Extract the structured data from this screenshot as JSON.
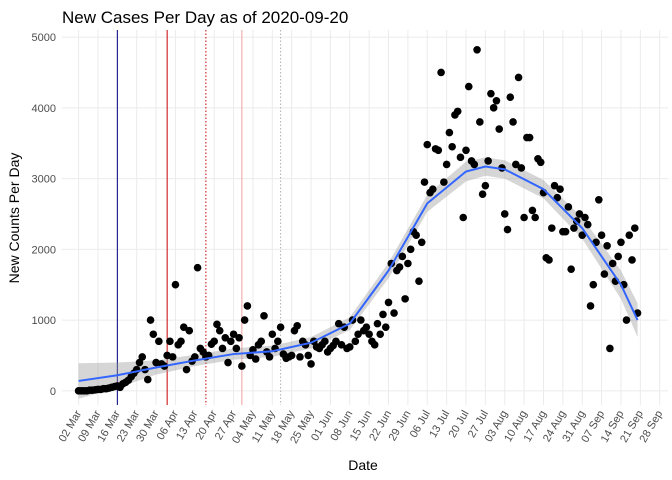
{
  "chart_data": {
    "type": "scatter",
    "title": "New Cases Per Day as of 2020-09-20",
    "x_label": "Date",
    "y_label": "New Counts Per Day",
    "color": "#000000",
    "x": [
      "02 Mar",
      "03 Mar",
      "04 Mar",
      "05 Mar",
      "06 Mar",
      "07 Mar",
      "08 Mar",
      "09 Mar",
      "10 Mar",
      "11 Mar",
      "12 Mar",
      "13 Mar",
      "14 Mar",
      "15 Mar",
      "16 Mar",
      "17 Mar",
      "18 Mar",
      "19 Mar",
      "20 Mar",
      "21 Mar",
      "22 Mar",
      "23 Mar",
      "24 Mar",
      "25 Mar",
      "26 Mar",
      "27 Mar",
      "28 Mar",
      "29 Mar",
      "30 Mar",
      "31 Mar",
      "01 Apr",
      "02 Apr",
      "03 Apr",
      "04 Apr",
      "05 Apr",
      "06 Apr",
      "07 Apr",
      "08 Apr",
      "09 Apr",
      "10 Apr",
      "11 Apr",
      "12 Apr",
      "13 Apr",
      "14 Apr",
      "15 Apr",
      "16 Apr",
      "17 Apr",
      "18 Apr",
      "19 Apr",
      "20 Apr",
      "21 Apr",
      "22 Apr",
      "23 Apr",
      "24 Apr",
      "25 Apr",
      "26 Apr",
      "27 Apr",
      "28 Apr",
      "29 Apr",
      "30 Apr",
      "01 May",
      "02 May",
      "03 May",
      "04 May",
      "05 May",
      "06 May",
      "07 May",
      "08 May",
      "09 May",
      "10 May",
      "11 May",
      "12 May",
      "13 May",
      "14 May",
      "15 May",
      "16 May",
      "17 May",
      "18 May",
      "19 May",
      "20 May",
      "21 May",
      "22 May",
      "23 May",
      "24 May",
      "25 May",
      "26 May",
      "27 May",
      "28 May",
      "29 May",
      "30 May",
      "31 May",
      "01 Jun",
      "02 Jun",
      "03 Jun",
      "04 Jun",
      "05 Jun",
      "06 Jun",
      "07 Jun",
      "08 Jun",
      "09 Jun",
      "10 Jun",
      "11 Jun",
      "12 Jun",
      "13 Jun",
      "14 Jun",
      "15 Jun",
      "16 Jun",
      "17 Jun",
      "18 Jun",
      "19 Jun",
      "20 Jun",
      "21 Jun",
      "22 Jun",
      "23 Jun",
      "24 Jun",
      "25 Jun",
      "26 Jun",
      "27 Jun",
      "28 Jun",
      "29 Jun",
      "30 Jun",
      "01 Jul",
      "02 Jul",
      "03 Jul",
      "04 Jul",
      "05 Jul",
      "06 Jul",
      "07 Jul",
      "08 Jul",
      "09 Jul",
      "10 Jul",
      "11 Jul",
      "12 Jul",
      "13 Jul",
      "14 Jul",
      "15 Jul",
      "16 Jul",
      "17 Jul",
      "18 Jul",
      "19 Jul",
      "20 Jul",
      "21 Jul",
      "22 Jul",
      "23 Jul",
      "24 Jul",
      "25 Jul",
      "26 Jul",
      "27 Jul",
      "28 Jul",
      "29 Jul",
      "30 Jul",
      "31 Jul",
      "01 Aug",
      "02 Aug",
      "03 Aug",
      "04 Aug",
      "05 Aug",
      "06 Aug",
      "07 Aug",
      "08 Aug",
      "09 Aug",
      "10 Aug",
      "11 Aug",
      "12 Aug",
      "13 Aug",
      "14 Aug",
      "15 Aug",
      "16 Aug",
      "17 Aug",
      "18 Aug",
      "19 Aug",
      "20 Aug",
      "21 Aug",
      "22 Aug",
      "23 Aug",
      "24 Aug",
      "25 Aug",
      "26 Aug",
      "27 Aug",
      "28 Aug",
      "29 Aug",
      "30 Aug",
      "31 Aug",
      "01 Sep",
      "02 Sep",
      "03 Sep",
      "04 Sep",
      "05 Sep",
      "06 Sep",
      "07 Sep",
      "08 Sep",
      "09 Sep",
      "10 Sep",
      "11 Sep",
      "12 Sep",
      "13 Sep",
      "14 Sep",
      "15 Sep",
      "16 Sep",
      "17 Sep",
      "18 Sep",
      "19 Sep",
      "20 Sep"
    ],
    "values": [
      0,
      0,
      0,
      0,
      10,
      10,
      15,
      20,
      20,
      30,
      30,
      40,
      50,
      60,
      70,
      50,
      100,
      120,
      150,
      200,
      250,
      300,
      400,
      480,
      300,
      160,
      1000,
      800,
      400,
      700,
      380,
      350,
      500,
      700,
      480,
      1500,
      650,
      700,
      900,
      300,
      850,
      420,
      480,
      1740,
      600,
      550,
      480,
      500,
      660,
      700,
      940,
      850,
      600,
      750,
      400,
      700,
      800,
      600,
      750,
      350,
      1000,
      1200,
      500,
      580,
      450,
      650,
      700,
      1060,
      550,
      480,
      800,
      600,
      700,
      900,
      520,
      460,
      480,
      500,
      850,
      920,
      480,
      700,
      650,
      500,
      380,
      700,
      620,
      600,
      650,
      700,
      550,
      600,
      640,
      700,
      950,
      650,
      900,
      600,
      620,
      1000,
      700,
      800,
      1000,
      850,
      900,
      800,
      700,
      650,
      950,
      800,
      1080,
      900,
      1250,
      1800,
      1100,
      1700,
      1750,
      1900,
      1300,
      1800,
      2000,
      2250,
      2200,
      1550,
      2100,
      2950,
      3480,
      2800,
      2850,
      3420,
      3400,
      4500,
      2950,
      3200,
      3650,
      3450,
      3900,
      3950,
      3300,
      2450,
      3400,
      4300,
      3250,
      3200,
      4820,
      3800,
      2780,
      2900,
      3250,
      4200,
      4000,
      4100,
      3700,
      3150,
      2500,
      2280,
      4150,
      3800,
      3200,
      4430,
      3150,
      2450,
      3580,
      3580,
      2550,
      2450,
      3280,
      3230,
      2800,
      1880,
      1850,
      2300,
      2900,
      2730,
      2850,
      2250,
      2250,
      2600,
      1720,
      2300,
      2400,
      2500,
      2200,
      2450,
      2350,
      1200,
      1500,
      2100,
      2700,
      2200,
      1650,
      2050,
      600,
      1800,
      1550,
      1900,
      2100,
      1500,
      1000,
      2200,
      1850,
      2300,
      1100
    ],
    "trend": {
      "color": "#3366ff",
      "band_color": "#999999",
      "x": [
        "02 Mar",
        "16 Mar",
        "30 Mar",
        "13 Apr",
        "27 Apr",
        "11 May",
        "25 May",
        "08 Jun",
        "22 Jun",
        "06 Jul",
        "20 Jul",
        "27 Jul",
        "03 Aug",
        "17 Aug",
        "31 Aug",
        "14 Sep",
        "20 Sep"
      ],
      "values": [
        140,
        220,
        330,
        430,
        520,
        560,
        680,
        950,
        1700,
        2650,
        3100,
        3170,
        3130,
        2850,
        2300,
        1500,
        1000
      ],
      "lower": [
        -110,
        40,
        230,
        350,
        440,
        480,
        600,
        860,
        1590,
        2530,
        2960,
        3040,
        3000,
        2720,
        2150,
        1300,
        760
      ],
      "upper": [
        390,
        400,
        430,
        510,
        600,
        640,
        760,
        1040,
        1810,
        2770,
        3240,
        3300,
        3260,
        2980,
        2450,
        1700,
        1240
      ]
    },
    "vlines": [
      {
        "x": "16 Mar",
        "color": "#000080",
        "dotted": false
      },
      {
        "x": "03 Apr",
        "color": "#cc0000",
        "dotted": false
      },
      {
        "x": "17 Apr",
        "color": "#cc0000",
        "dotted": true
      },
      {
        "x": "30 Apr",
        "color": "#f2a0a0",
        "dotted": false
      },
      {
        "x": "14 May",
        "color": "#b0b0b0",
        "dotted": true
      }
    ],
    "xlim": [
      "25 Feb",
      "01 Oct"
    ],
    "xticks": [
      "02 Mar",
      "09 Mar",
      "16 Mar",
      "23 Mar",
      "30 Mar",
      "06 Apr",
      "13 Apr",
      "20 Apr",
      "27 Apr",
      "04 May",
      "11 May",
      "18 May",
      "25 May",
      "01 Jun",
      "08 Jun",
      "15 Jun",
      "22 Jun",
      "29 Jun",
      "06 Jul",
      "13 Jul",
      "20 Jul",
      "27 Jul",
      "03 Aug",
      "10 Aug",
      "17 Aug",
      "24 Aug",
      "31 Aug",
      "07 Sep",
      "14 Sep",
      "21 Sep",
      "28 Sep"
    ],
    "ylim": [
      -200,
      5100
    ],
    "yticks": [
      0,
      1000,
      2000,
      3000,
      4000,
      5000
    ],
    "grid": true
  }
}
